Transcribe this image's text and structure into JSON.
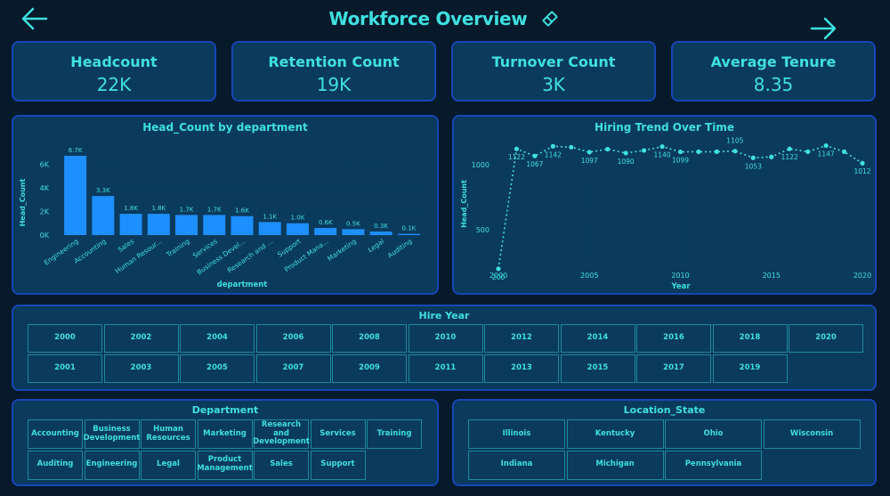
{
  "header": {
    "title": "Workforce Overview",
    "back_icon": "arrow-left-icon",
    "forward_icon": "arrow-right-icon",
    "clear_filters_icon": "eraser-icon"
  },
  "kpis": [
    {
      "label": "Headcount",
      "value": "22K"
    },
    {
      "label": "Retention Count",
      "value": "19K"
    },
    {
      "label": "Turnover Count",
      "value": "3K"
    },
    {
      "label": "Average Tenure",
      "value": "8.35"
    }
  ],
  "colors": {
    "background": "#061a2b",
    "panel": "#0a3a5c",
    "panel_border": "#1746b8",
    "accent_text": "#3fe0e0",
    "bar": "#1e8fff",
    "tile_border": "#1c8a9c"
  },
  "chart_data": [
    {
      "type": "bar",
      "title": "Head_Count by department",
      "xlabel": "department",
      "ylabel": "Head_Count",
      "ylim": [
        0,
        7000
      ],
      "yticks": [
        "0K",
        "2K",
        "4K",
        "6K"
      ],
      "categories": [
        "Engineering",
        "Accounting",
        "Sales",
        "Human Resour...",
        "Training",
        "Services",
        "Business Devel...",
        "Research and ...",
        "Support",
        "Product Mana...",
        "Marketing",
        "Legal",
        "Auditing"
      ],
      "values": [
        6700,
        3300,
        1800,
        1800,
        1700,
        1700,
        1600,
        1100,
        1000,
        600,
        500,
        300,
        100
      ],
      "data_labels": [
        "6.7K",
        "3.3K",
        "1.8K",
        "1.8K",
        "1.7K",
        "1.7K",
        "1.6K",
        "1.1K",
        "1.0K",
        "0.6K",
        "0.5K",
        "0.3K",
        "0.1K"
      ],
      "grid": true
    },
    {
      "type": "line",
      "title": "Hiring Trend Over Time",
      "xlabel": "Year",
      "ylabel": "Head_Count",
      "xticks": [
        "2000",
        "2005",
        "2010",
        "2015",
        "2020"
      ],
      "yticks": [
        "500",
        "1000"
      ],
      "x": [
        2000,
        2001,
        2002,
        2003,
        2004,
        2005,
        2006,
        2007,
        2008,
        2009,
        2010,
        2011,
        2012,
        2013,
        2014,
        2015,
        2016,
        2017,
        2018,
        2019,
        2020
      ],
      "values": [
        200,
        1122,
        1067,
        1142,
        1135,
        1097,
        1120,
        1090,
        1110,
        1140,
        1099,
        1100,
        1100,
        1105,
        1053,
        1060,
        1122,
        1100,
        1147,
        1100,
        1012
      ],
      "data_labels": [
        "200",
        "1122",
        "1067",
        "1142",
        "",
        "1097",
        "",
        "1090",
        "",
        "1140",
        "1099",
        "",
        "",
        "1105",
        "1053",
        "",
        "1122",
        "",
        "1147",
        "",
        "1012"
      ],
      "style": "dotted",
      "grid": true
    }
  ],
  "slicers": {
    "hire_year": {
      "title": "Hire Year",
      "row1": [
        "2000",
        "2002",
        "2004",
        "2006",
        "2008",
        "2010",
        "2012",
        "2014",
        "2016",
        "2018",
        "2020"
      ],
      "row2": [
        "2001",
        "2003",
        "2005",
        "2007",
        "2009",
        "2011",
        "2013",
        "2015",
        "2017",
        "2019"
      ]
    },
    "department": {
      "title": "Department",
      "row1": [
        "Accounting",
        "Business Development",
        "Human Resources",
        "Marketing",
        "Research and Development",
        "Services",
        "Training"
      ],
      "row2": [
        "Auditing",
        "Engineering",
        "Legal",
        "Product Management",
        "Sales",
        "Support"
      ]
    },
    "location_state": {
      "title": "Location_State",
      "row1": [
        "Illinois",
        "Kentucky",
        "Ohio",
        "Wisconsin"
      ],
      "row2": [
        "Indiana",
        "Michigan",
        "Pennsylvania"
      ]
    }
  }
}
